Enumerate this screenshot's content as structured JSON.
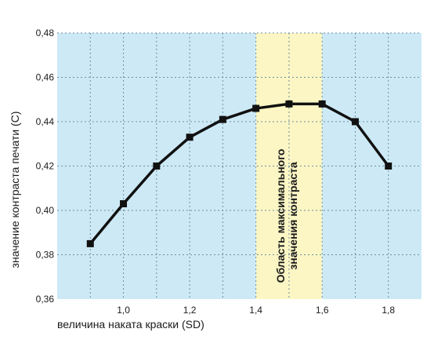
{
  "chart_data": {
    "type": "line",
    "xlabel": "величина наката краски (SD)",
    "ylabel": "значение контраста печати (C)",
    "xlim": [
      0.8,
      1.9
    ],
    "ylim": [
      0.36,
      0.48
    ],
    "x_ticks": [
      "1,0",
      "1,2",
      "1,4",
      "1,6",
      "1,8"
    ],
    "y_ticks": [
      "0,36",
      "0,38",
      "0,40",
      "0,42",
      "0,44",
      "0,46",
      "0,48"
    ],
    "grid": true,
    "series": [
      {
        "x": [
          0.9,
          1.0,
          1.1,
          1.2,
          1.3,
          1.4,
          1.5,
          1.6,
          1.7,
          1.8
        ],
        "y": [
          0.385,
          0.403,
          0.42,
          0.433,
          0.441,
          0.446,
          0.448,
          0.448,
          0.44,
          0.42
        ]
      }
    ],
    "highlight_region": {
      "x_range": [
        1.4,
        1.6
      ],
      "label_lines": [
        "Область максимального",
        "значения контраста"
      ]
    },
    "colors": {
      "plot_background": "#cde9f6",
      "highlight": "#fbf6c4",
      "line": "#111111",
      "grid": "#6f8fa0"
    }
  }
}
